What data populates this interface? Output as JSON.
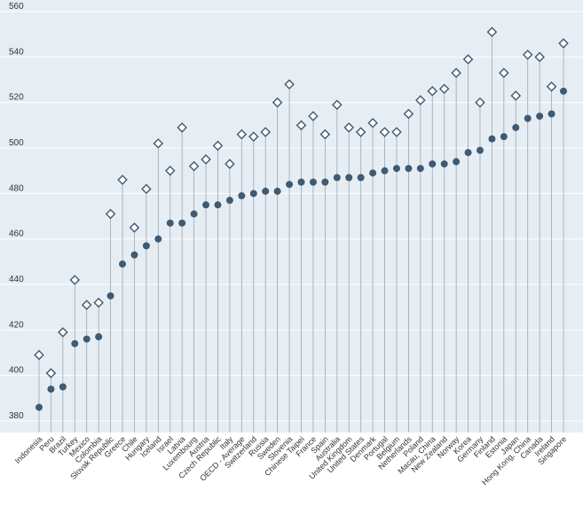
{
  "chart_data": {
    "type": "dot-plot",
    "y_axis": {
      "min": 380,
      "max": 560,
      "ticks": [
        380,
        400,
        420,
        440,
        460,
        480,
        500,
        520,
        540,
        560
      ]
    },
    "grid": true,
    "series": [
      {
        "marker": "filled-circle",
        "color": "#3f5a73",
        "values": [
          386,
          394,
          395,
          414,
          416,
          417,
          435,
          449,
          453,
          457,
          460,
          467,
          467,
          471,
          475,
          475,
          477,
          479,
          480,
          481,
          481,
          484,
          485,
          485,
          485,
          487,
          487,
          487,
          489,
          490,
          491,
          491,
          491,
          493,
          493,
          494,
          498,
          499,
          504,
          505,
          509,
          513,
          514,
          515,
          525
        ]
      },
      {
        "marker": "open-diamond",
        "color": "#3f5a73",
        "values": [
          409,
          401,
          419,
          442,
          431,
          432,
          471,
          486,
          465,
          482,
          502,
          490,
          509,
          492,
          495,
          501,
          493,
          506,
          505,
          507,
          520,
          528,
          510,
          514,
          506,
          519,
          509,
          507,
          511,
          507,
          507,
          515,
          521,
          525,
          526,
          533,
          539,
          520,
          551,
          533,
          523,
          541,
          540,
          527,
          546
        ]
      }
    ],
    "categories": [
      "Indonesia",
      "Peru",
      "Brazil",
      "Turkey",
      "Mexico",
      "Colombia",
      "Slovak Republic",
      "Greece",
      "Chile",
      "Hungary",
      "Iceland",
      "Israel",
      "Latvia",
      "Luxembourg",
      "Austria",
      "Czech Republic",
      "Italy",
      "OECD - Average",
      "Switzerland",
      "Russia",
      "Sweden",
      "Slovenia",
      "Chinese Taipei",
      "France",
      "Spain",
      "Australia",
      "United Kingdom",
      "United States",
      "Denmark",
      "Portugal",
      "Belgium",
      "Netherlands",
      "Poland",
      "Macau, China",
      "New Zealand",
      "Norway",
      "Korea",
      "Germany",
      "Finland",
      "Estonia",
      "Japan",
      "Hong Kong, China",
      "Canada",
      "Ireland",
      "Singapore"
    ],
    "colors": {
      "plot_background": "#e6eef4",
      "gridline": "#ffffff",
      "stem": "#9aa8b4",
      "marker": "#3f5a73"
    }
  }
}
